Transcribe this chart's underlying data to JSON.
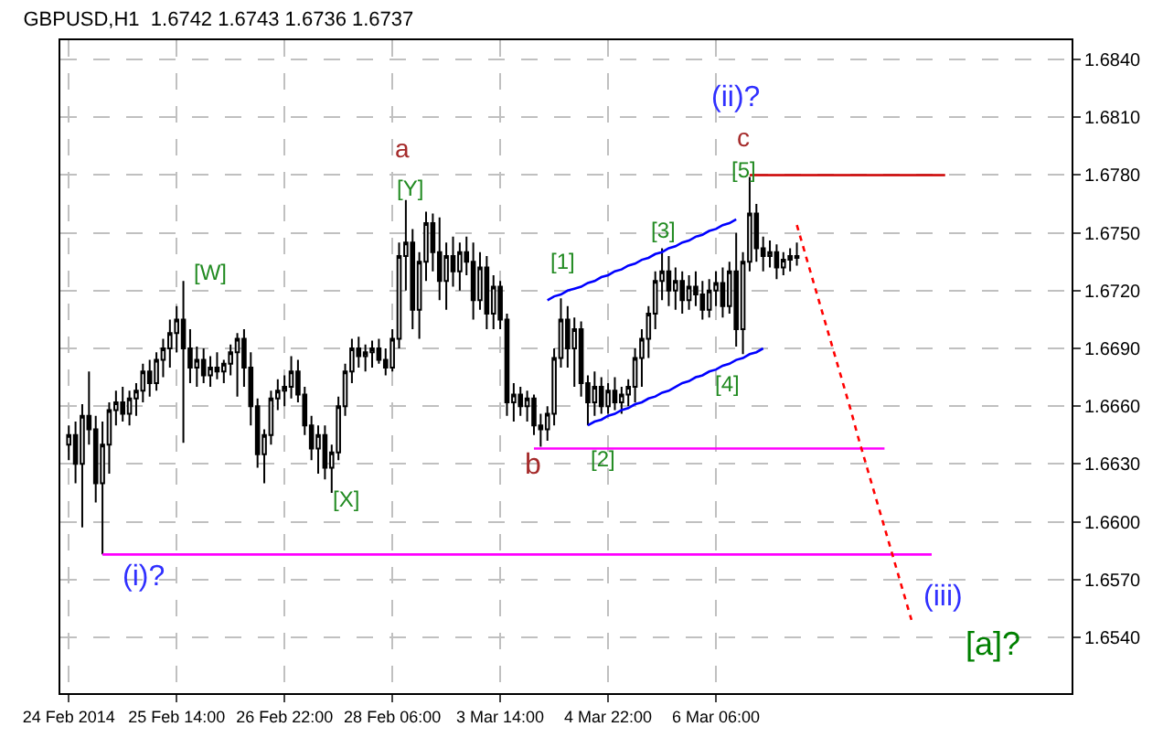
{
  "chart_data": {
    "type": "candlestick",
    "title": "GBPUSD,H1  1.6742 1.6743 1.6736 1.6737",
    "categories": [
      "24 Feb 2014",
      null,
      null,
      null,
      null,
      null,
      null,
      null,
      null,
      null,
      null,
      null,
      null,
      null,
      null,
      null,
      "25 Feb 14:00",
      null,
      null,
      null,
      null,
      null,
      null,
      null,
      null,
      null,
      null,
      null,
      null,
      null,
      null,
      null,
      "26 Feb 22:00",
      null,
      null,
      null,
      null,
      null,
      null,
      null,
      null,
      null,
      null,
      null,
      null,
      null,
      null,
      null,
      "28 Feb 06:00",
      null,
      null,
      null,
      null,
      null,
      null,
      null,
      null,
      null,
      null,
      null,
      null,
      null,
      null,
      null,
      "3 Mar 14:00",
      null,
      null,
      null,
      null,
      null,
      null,
      null,
      null,
      null,
      null,
      null,
      null,
      null,
      null,
      null,
      "4 Mar 22:00",
      null,
      null,
      null,
      null,
      null,
      null,
      null,
      null,
      null,
      null,
      null,
      null,
      null,
      null,
      null,
      "6 Mar 06:00",
      null,
      null,
      null,
      null,
      null,
      null,
      null,
      null,
      null,
      null,
      null,
      null,
      null,
      null,
      null,
      null,
      null,
      null,
      null,
      null,
      null,
      null,
      null,
      null,
      null,
      null,
      null,
      null,
      null,
      null,
      null,
      null,
      null,
      null,
      null,
      null,
      null,
      null,
      null,
      null,
      null,
      null,
      null,
      null,
      null,
      null,
      null,
      null,
      null,
      null,
      null,
      null,
      null
    ],
    "ohlc": [
      [
        1.664,
        1.665,
        1.6632,
        1.6645
      ],
      [
        1.6645,
        1.6652,
        1.662,
        1.663
      ],
      [
        1.663,
        1.6661,
        1.6597,
        1.6655
      ],
      [
        1.6655,
        1.6678,
        1.664,
        1.6648
      ],
      [
        1.6648,
        1.6655,
        1.661,
        1.662
      ],
      [
        1.662,
        1.6652,
        1.6583,
        1.664
      ],
      [
        1.664,
        1.6662,
        1.6625,
        1.6658
      ],
      [
        1.6658,
        1.6668,
        1.665,
        1.6662
      ],
      [
        1.6662,
        1.667,
        1.6652,
        1.6656
      ],
      [
        1.6656,
        1.6668,
        1.665,
        1.6664
      ],
      [
        1.6664,
        1.6672,
        1.6655,
        1.6668
      ],
      [
        1.6668,
        1.6682,
        1.6662,
        1.6678
      ],
      [
        1.6678,
        1.6684,
        1.6665,
        1.6672
      ],
      [
        1.6672,
        1.6688,
        1.6668,
        1.6684
      ],
      [
        1.6684,
        1.6695,
        1.6675,
        1.669
      ],
      [
        1.669,
        1.6705,
        1.668,
        1.6698
      ],
      [
        1.6698,
        1.6712,
        1.6688,
        1.6705
      ],
      [
        1.6705,
        1.6725,
        1.6641,
        1.669
      ],
      [
        1.669,
        1.67,
        1.6672,
        1.668
      ],
      [
        1.668,
        1.6691,
        1.667,
        1.6684
      ],
      [
        1.6684,
        1.669,
        1.6672,
        1.6676
      ],
      [
        1.6676,
        1.6686,
        1.667,
        1.668
      ],
      [
        1.668,
        1.6688,
        1.6674,
        1.6678
      ],
      [
        1.6678,
        1.6684,
        1.6672,
        1.6682
      ],
      [
        1.6682,
        1.6692,
        1.6676,
        1.6688
      ],
      [
        1.6688,
        1.6698,
        1.6665,
        1.6695
      ],
      [
        1.6695,
        1.67,
        1.667,
        1.668
      ],
      [
        1.668,
        1.6688,
        1.665,
        1.666
      ],
      [
        1.666,
        1.6664,
        1.6628,
        1.6635
      ],
      [
        1.6635,
        1.6648,
        1.662,
        1.6645
      ],
      [
        1.6645,
        1.6668,
        1.664,
        1.6664
      ],
      [
        1.6664,
        1.6674,
        1.6658,
        1.6668
      ],
      [
        1.6668,
        1.6676,
        1.666,
        1.667
      ],
      [
        1.667,
        1.6686,
        1.6664,
        1.6678
      ],
      [
        1.6678,
        1.6684,
        1.6662,
        1.6666
      ],
      [
        1.6666,
        1.667,
        1.6645,
        1.665
      ],
      [
        1.665,
        1.6655,
        1.6632,
        1.6638
      ],
      [
        1.6638,
        1.665,
        1.6625,
        1.6645
      ],
      [
        1.6645,
        1.665,
        1.6622,
        1.6628
      ],
      [
        1.6628,
        1.664,
        1.6615,
        1.6636
      ],
      [
        1.6636,
        1.6665,
        1.6632,
        1.666
      ],
      [
        1.666,
        1.6682,
        1.6655,
        1.6678
      ],
      [
        1.6678,
        1.6695,
        1.6672,
        1.669
      ],
      [
        1.669,
        1.6696,
        1.668,
        1.6686
      ],
      [
        1.6686,
        1.6692,
        1.6678,
        1.6688
      ],
      [
        1.6688,
        1.6694,
        1.668,
        1.669
      ],
      [
        1.669,
        1.6695,
        1.6682,
        1.6684
      ],
      [
        1.6684,
        1.669,
        1.6676,
        1.668
      ],
      [
        1.668,
        1.67,
        1.6678,
        1.6695
      ],
      [
        1.6695,
        1.6745,
        1.669,
        1.6738
      ],
      [
        1.6738,
        1.6767,
        1.672,
        1.6745
      ],
      [
        1.6745,
        1.6752,
        1.67,
        1.671
      ],
      [
        1.671,
        1.674,
        1.6695,
        1.6735
      ],
      [
        1.6735,
        1.6761,
        1.6725,
        1.6755
      ],
      [
        1.6755,
        1.676,
        1.673,
        1.674
      ],
      [
        1.674,
        1.6758,
        1.6715,
        1.6725
      ],
      [
        1.6725,
        1.6745,
        1.671,
        1.6738
      ],
      [
        1.6738,
        1.6748,
        1.6722,
        1.673
      ],
      [
        1.673,
        1.6745,
        1.672,
        1.674
      ],
      [
        1.674,
        1.6748,
        1.6728,
        1.6735
      ],
      [
        1.6735,
        1.6745,
        1.6705,
        1.6715
      ],
      [
        1.6715,
        1.674,
        1.671,
        1.6732
      ],
      [
        1.6732,
        1.6738,
        1.67,
        1.6708
      ],
      [
        1.6708,
        1.6728,
        1.67,
        1.6722
      ],
      [
        1.6722,
        1.6725,
        1.67,
        1.6705
      ],
      [
        1.6705,
        1.6708,
        1.6655,
        1.6662
      ],
      [
        1.6662,
        1.6672,
        1.6652,
        1.6666
      ],
      [
        1.6666,
        1.667,
        1.6655,
        1.666
      ],
      [
        1.666,
        1.6668,
        1.6652,
        1.6664
      ],
      [
        1.6664,
        1.6666,
        1.6645,
        1.665
      ],
      [
        1.665,
        1.6656,
        1.6639,
        1.6648
      ],
      [
        1.6648,
        1.666,
        1.6642,
        1.6656
      ],
      [
        1.6656,
        1.669,
        1.665,
        1.6685
      ],
      [
        1.6685,
        1.6716,
        1.668,
        1.6705
      ],
      [
        1.6705,
        1.6712,
        1.668,
        1.669
      ],
      [
        1.669,
        1.6706,
        1.667,
        1.67
      ],
      [
        1.67,
        1.6704,
        1.6665,
        1.6672
      ],
      [
        1.6672,
        1.6676,
        1.665,
        1.6662
      ],
      [
        1.6662,
        1.6678,
        1.6655,
        1.667
      ],
      [
        1.667,
        1.6675,
        1.6656,
        1.666
      ],
      [
        1.666,
        1.6672,
        1.6656,
        1.6668
      ],
      [
        1.6668,
        1.6675,
        1.6658,
        1.6662
      ],
      [
        1.6662,
        1.667,
        1.6656,
        1.6666
      ],
      [
        1.6666,
        1.6674,
        1.666,
        1.667
      ],
      [
        1.667,
        1.669,
        1.6662,
        1.6685
      ],
      [
        1.6685,
        1.67,
        1.667,
        1.6695
      ],
      [
        1.6695,
        1.6712,
        1.6685,
        1.6708
      ],
      [
        1.6708,
        1.673,
        1.67,
        1.6725
      ],
      [
        1.6725,
        1.6742,
        1.6715,
        1.673
      ],
      [
        1.673,
        1.6738,
        1.6712,
        1.672
      ],
      [
        1.672,
        1.6732,
        1.671,
        1.6725
      ],
      [
        1.6725,
        1.673,
        1.6708,
        1.6715
      ],
      [
        1.6715,
        1.6728,
        1.671,
        1.6722
      ],
      [
        1.6722,
        1.673,
        1.6712,
        1.6718
      ],
      [
        1.6718,
        1.6725,
        1.6705,
        1.671
      ],
      [
        1.671,
        1.6726,
        1.6706,
        1.672
      ],
      [
        1.672,
        1.673,
        1.6712,
        1.6724
      ],
      [
        1.6724,
        1.6732,
        1.6706,
        1.6712
      ],
      [
        1.6712,
        1.6735,
        1.6708,
        1.673
      ],
      [
        1.673,
        1.675,
        1.6691,
        1.67
      ],
      [
        1.67,
        1.674,
        1.6687,
        1.6735
      ],
      [
        1.6735,
        1.6779,
        1.673,
        1.676
      ],
      [
        1.676,
        1.6765,
        1.6735,
        1.6742
      ],
      [
        1.6742,
        1.6748,
        1.673,
        1.6738
      ],
      [
        1.6738,
        1.6746,
        1.6732,
        1.674
      ],
      [
        1.674,
        1.6744,
        1.6726,
        1.6732
      ],
      [
        1.6732,
        1.674,
        1.6728,
        1.6736
      ],
      [
        1.6736,
        1.6742,
        1.673,
        1.6738
      ],
      [
        1.6738,
        1.6745,
        1.6733,
        1.6737
      ],
      null,
      null,
      null,
      null,
      null,
      null,
      null,
      null,
      null,
      null,
      null,
      null,
      null,
      null,
      null,
      null,
      null,
      null,
      null,
      null,
      null,
      null,
      null,
      null,
      null,
      null,
      null,
      null,
      null,
      null,
      null,
      null,
      null,
      null,
      null,
      null,
      null,
      null,
      null,
      null,
      null
    ],
    "color": "#000000",
    "series": [
      {
        "type": "line",
        "color": "#0000ff",
        "line_style": "solid",
        "values": [
          null,
          null,
          null,
          null,
          null,
          null,
          null,
          null,
          null,
          null,
          null,
          null,
          null,
          null,
          null,
          null,
          null,
          null,
          null,
          null,
          null,
          null,
          null,
          null,
          null,
          null,
          null,
          null,
          null,
          null,
          null,
          null,
          null,
          null,
          null,
          null,
          null,
          null,
          null,
          null,
          null,
          null,
          null,
          null,
          null,
          null,
          null,
          null,
          null,
          null,
          null,
          null,
          null,
          null,
          null,
          null,
          null,
          null,
          null,
          null,
          null,
          null,
          null,
          null,
          null,
          null,
          null,
          null,
          null,
          null,
          null,
          1.6715,
          1.6717,
          1.6718,
          1.672,
          1.6721,
          1.6722,
          1.6724,
          1.6725,
          1.6727,
          1.6728,
          1.673,
          1.6731,
          1.6733,
          1.6734,
          1.6736,
          1.6737,
          1.6739,
          1.674,
          1.6742,
          1.6743,
          1.6745,
          1.6746,
          1.6748,
          1.6749,
          1.6751,
          1.6752,
          1.6754,
          1.6755,
          1.6757,
          null,
          null,
          null,
          null,
          null,
          null,
          null,
          null,
          null,
          null,
          null,
          null,
          null,
          null,
          null,
          null,
          null,
          null,
          null,
          null,
          null,
          null,
          null,
          null,
          null,
          null,
          null,
          null,
          null,
          null,
          null,
          null,
          null,
          null,
          null,
          null,
          null,
          null,
          null,
          null,
          null,
          null,
          null,
          null,
          null,
          null,
          null,
          null,
          null,
          null
        ]
      },
      {
        "type": "line",
        "color": "#0000ff",
        "line_style": "solid",
        "values": [
          null,
          null,
          null,
          null,
          null,
          null,
          null,
          null,
          null,
          null,
          null,
          null,
          null,
          null,
          null,
          null,
          null,
          null,
          null,
          null,
          null,
          null,
          null,
          null,
          null,
          null,
          null,
          null,
          null,
          null,
          null,
          null,
          null,
          null,
          null,
          null,
          null,
          null,
          null,
          null,
          null,
          null,
          null,
          null,
          null,
          null,
          null,
          null,
          null,
          null,
          null,
          null,
          null,
          null,
          null,
          null,
          null,
          null,
          null,
          null,
          null,
          null,
          null,
          null,
          null,
          null,
          null,
          null,
          null,
          null,
          null,
          null,
          null,
          null,
          null,
          null,
          null,
          1.665,
          1.6652,
          1.6653,
          1.6655,
          1.6656,
          1.6658,
          1.6659,
          1.6661,
          1.6662,
          1.6664,
          1.6665,
          1.6667,
          1.6668,
          1.667,
          1.6672,
          1.6673,
          1.6675,
          1.6676,
          1.6678,
          1.6679,
          1.6681,
          1.6682,
          1.6684,
          1.6685,
          1.6687,
          1.6688,
          1.669,
          null,
          null,
          null,
          null,
          null,
          null,
          null,
          null,
          null,
          null,
          null,
          null,
          null,
          null,
          null,
          null,
          null,
          null,
          null,
          null,
          null,
          null,
          null,
          null,
          null,
          null,
          null,
          null,
          null,
          null,
          null,
          null,
          null,
          null,
          null,
          null,
          null,
          null,
          null,
          null,
          null,
          null,
          null,
          null,
          null,
          null
        ]
      },
      {
        "type": "line",
        "color": "#ff00ff",
        "line_style": "solid",
        "values": [
          null,
          null,
          null,
          null,
          null,
          1.6583,
          1.6583,
          1.6583,
          1.6583,
          1.6583,
          1.6583,
          1.6583,
          1.6583,
          1.6583,
          1.6583,
          1.6583,
          1.6583,
          1.6583,
          1.6583,
          1.6583,
          1.6583,
          1.6583,
          1.6583,
          1.6583,
          1.6583,
          1.6583,
          1.6583,
          1.6583,
          1.6583,
          1.6583,
          1.6583,
          1.6583,
          1.6583,
          1.6583,
          1.6583,
          1.6583,
          1.6583,
          1.6583,
          1.6583,
          1.6583,
          1.6583,
          1.6583,
          1.6583,
          1.6583,
          1.6583,
          1.6583,
          1.6583,
          1.6583,
          1.6583,
          1.6583,
          1.6583,
          1.6583,
          1.6583,
          1.6583,
          1.6583,
          1.6583,
          1.6583,
          1.6583,
          1.6583,
          1.6583,
          1.6583,
          1.6583,
          1.6583,
          1.6583,
          1.6583,
          1.6583,
          1.6583,
          1.6583,
          1.6583,
          1.6583,
          1.6583,
          1.6583,
          1.6583,
          1.6583,
          1.6583,
          1.6583,
          1.6583,
          1.6583,
          1.6583,
          1.6583,
          1.6583,
          1.6583,
          1.6583,
          1.6583,
          1.6583,
          1.6583,
          1.6583,
          1.6583,
          1.6583,
          1.6583,
          1.6583,
          1.6583,
          1.6583,
          1.6583,
          1.6583,
          1.6583,
          1.6583,
          1.6583,
          1.6583,
          1.6583,
          1.6583,
          1.6583,
          1.6583,
          1.6583,
          1.6583,
          1.6583,
          1.6583,
          1.6583,
          1.6583,
          1.6583,
          1.6583,
          1.6583,
          1.6583,
          1.6583,
          1.6583,
          1.6583,
          1.6583,
          1.6583,
          1.6583,
          1.6583,
          1.6583,
          1.6583,
          1.6583,
          1.6583,
          1.6583,
          1.6583,
          1.6583,
          1.6583,
          1.6583,
          null,
          null,
          null,
          null,
          null,
          null,
          null,
          null,
          null,
          null,
          null,
          null,
          null,
          null,
          null,
          null,
          null,
          null,
          null,
          null,
          null
        ]
      },
      {
        "type": "line",
        "color": "#ff00ff",
        "line_style": "solid",
        "values": [
          null,
          null,
          null,
          null,
          null,
          null,
          null,
          null,
          null,
          null,
          null,
          null,
          null,
          null,
          null,
          null,
          null,
          null,
          null,
          null,
          null,
          null,
          null,
          null,
          null,
          null,
          null,
          null,
          null,
          null,
          null,
          null,
          null,
          null,
          null,
          null,
          null,
          null,
          null,
          null,
          null,
          null,
          null,
          null,
          null,
          null,
          null,
          null,
          null,
          null,
          null,
          null,
          null,
          null,
          null,
          null,
          null,
          null,
          null,
          null,
          null,
          null,
          null,
          null,
          null,
          null,
          null,
          null,
          null,
          1.6638,
          1.6638,
          1.6638,
          1.6638,
          1.6638,
          1.6638,
          1.6638,
          1.6638,
          1.6638,
          1.6638,
          1.6638,
          1.6638,
          1.6638,
          1.6638,
          1.6638,
          1.6638,
          1.6638,
          1.6638,
          1.6638,
          1.6638,
          1.6638,
          1.6638,
          1.6638,
          1.6638,
          1.6638,
          1.6638,
          1.6638,
          1.6638,
          1.6638,
          1.6638,
          1.6638,
          1.6638,
          1.6638,
          1.6638,
          1.6638,
          1.6638,
          1.6638,
          1.6638,
          1.6638,
          1.6638,
          1.6638,
          1.6638,
          1.6638,
          1.6638,
          1.6638,
          1.6638,
          1.6638,
          1.6638,
          1.6638,
          1.6638,
          1.6638,
          1.6638,
          1.6638,
          null,
          null,
          null,
          null,
          null,
          null,
          null,
          null,
          null,
          null,
          null,
          null,
          null,
          null,
          null,
          null,
          null,
          null,
          null,
          null,
          null,
          null,
          null,
          null,
          null,
          null,
          null,
          null
        ]
      },
      {
        "type": "line",
        "color": "#cc0000",
        "line_style": "solid",
        "values": [
          null,
          null,
          null,
          null,
          null,
          null,
          null,
          null,
          null,
          null,
          null,
          null,
          null,
          null,
          null,
          null,
          null,
          null,
          null,
          null,
          null,
          null,
          null,
          null,
          null,
          null,
          null,
          null,
          null,
          null,
          null,
          null,
          null,
          null,
          null,
          null,
          null,
          null,
          null,
          null,
          null,
          null,
          null,
          null,
          null,
          null,
          null,
          null,
          null,
          null,
          null,
          null,
          null,
          null,
          null,
          null,
          null,
          null,
          null,
          null,
          null,
          null,
          null,
          null,
          null,
          null,
          null,
          null,
          null,
          null,
          null,
          null,
          null,
          null,
          null,
          null,
          null,
          null,
          null,
          null,
          null,
          null,
          null,
          null,
          null,
          null,
          null,
          null,
          null,
          null,
          null,
          null,
          null,
          null,
          null,
          null,
          null,
          null,
          null,
          null,
          null,
          1.678,
          1.678,
          1.678,
          1.678,
          1.678,
          1.678,
          1.678,
          1.678,
          1.678,
          1.678,
          1.678,
          1.678,
          1.678,
          1.678,
          1.678,
          1.678,
          1.678,
          1.678,
          1.678,
          1.678,
          1.678,
          1.678,
          1.678,
          1.678,
          1.678,
          1.678,
          1.678,
          1.678,
          1.678,
          1.678,
          null,
          null,
          null,
          null,
          null,
          null,
          null,
          null,
          null,
          null,
          null,
          null,
          null,
          null,
          null,
          null,
          null,
          null,
          null
        ]
      },
      {
        "type": "line",
        "color": "#ff0000",
        "line_style": "dotted",
        "values": [
          null,
          null,
          null,
          null,
          null,
          null,
          null,
          null,
          null,
          null,
          null,
          null,
          null,
          null,
          null,
          null,
          null,
          null,
          null,
          null,
          null,
          null,
          null,
          null,
          null,
          null,
          null,
          null,
          null,
          null,
          null,
          null,
          null,
          null,
          null,
          null,
          null,
          null,
          null,
          null,
          null,
          null,
          null,
          null,
          null,
          null,
          null,
          null,
          null,
          null,
          null,
          null,
          null,
          null,
          null,
          null,
          null,
          null,
          null,
          null,
          null,
          null,
          null,
          null,
          null,
          null,
          null,
          null,
          null,
          null,
          null,
          null,
          null,
          null,
          null,
          null,
          null,
          null,
          null,
          null,
          null,
          null,
          null,
          null,
          null,
          null,
          null,
          null,
          null,
          null,
          null,
          null,
          null,
          null,
          null,
          null,
          null,
          null,
          null,
          null,
          null,
          null,
          null,
          null,
          null,
          null,
          null,
          null,
          1.6754,
          1.6742,
          1.673,
          1.6718,
          1.6706,
          1.6694,
          1.6682,
          1.667,
          1.6658,
          1.6645,
          1.6633,
          1.6621,
          1.6609,
          1.6597,
          1.6585,
          1.6573,
          1.6561,
          1.6549,
          null,
          null,
          null,
          null,
          null,
          null,
          null,
          null,
          null,
          null,
          null,
          null,
          null,
          null,
          null,
          null,
          null,
          null,
          null,
          null,
          null,
          null,
          null,
          null
        ]
      }
    ],
    "annotations": [
      "a",
      "[Y]",
      "[W]",
      "[X]",
      "(i)?",
      "b",
      "[1]",
      "[2]",
      "[3]",
      "[4]",
      "[5]",
      "c",
      "(ii)?",
      "(iii)",
      "[a]?"
    ],
    "ylim": [
      1.6511,
      1.685
    ],
    "yticks": [
      {
        "value": 1.654,
        "label": "1.6540"
      },
      {
        "value": 1.657,
        "label": "1.6570"
      },
      {
        "value": 1.66,
        "label": "1.6600"
      },
      {
        "value": 1.663,
        "label": "1.6630"
      },
      {
        "value": 1.666,
        "label": "1.6660"
      },
      {
        "value": 1.669,
        "label": "1.6690"
      },
      {
        "value": 1.672,
        "label": "1.6720"
      },
      {
        "value": 1.675,
        "label": "1.6750"
      },
      {
        "value": 1.678,
        "label": "1.6780"
      },
      {
        "value": 1.681,
        "label": "1.6810"
      },
      {
        "value": 1.684,
        "label": "1.6840"
      }
    ],
    "grid": true
  }
}
